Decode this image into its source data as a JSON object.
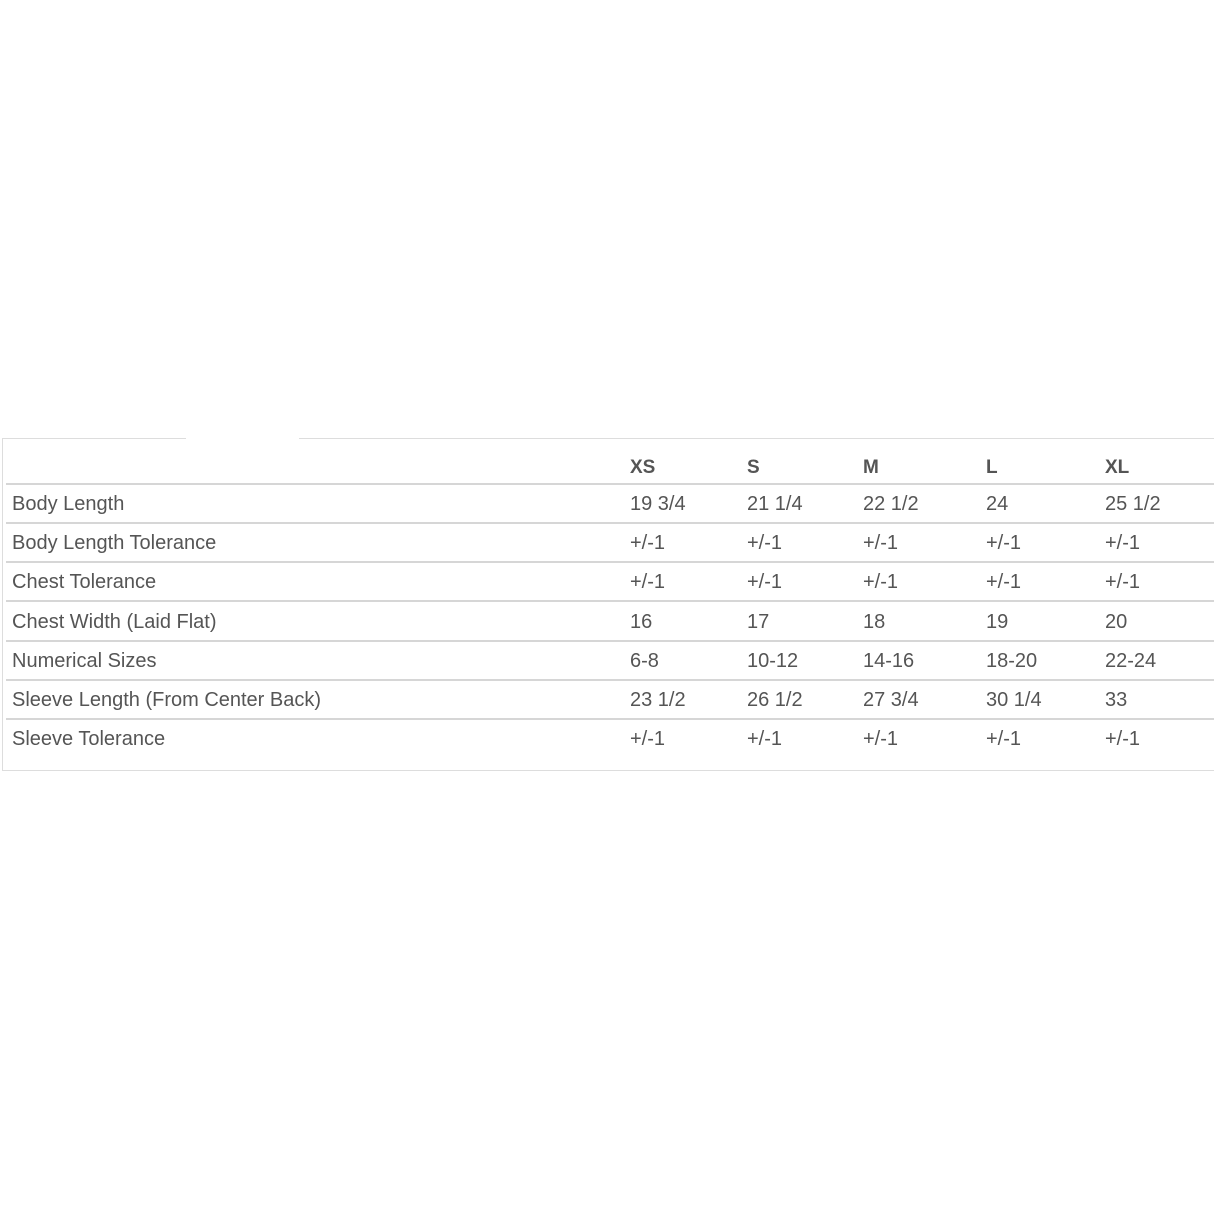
{
  "table": {
    "columns": [
      "XS",
      "S",
      "M",
      "L",
      "XL"
    ],
    "rows": [
      {
        "label": "Body Length",
        "values": [
          "19 3/4",
          "21 1/4",
          "22 1/2",
          "24",
          "25 1/2"
        ]
      },
      {
        "label": "Body Length Tolerance",
        "values": [
          "+/-1",
          "+/-1",
          "+/-1",
          "+/-1",
          "+/-1"
        ]
      },
      {
        "label": "Chest Tolerance",
        "values": [
          "+/-1",
          "+/-1",
          "+/-1",
          "+/-1",
          "+/-1"
        ]
      },
      {
        "label": "Chest Width (Laid Flat)",
        "values": [
          "16",
          "17",
          "18",
          "19",
          "20"
        ]
      },
      {
        "label": "Numerical Sizes",
        "values": [
          "6-8",
          "10-12",
          "14-16",
          "18-20",
          "22-24"
        ]
      },
      {
        "label": "Sleeve Length (From Center Back)",
        "values": [
          "23 1/2",
          "26 1/2",
          "27 3/4",
          "30 1/4",
          "33"
        ]
      },
      {
        "label": "Sleeve Tolerance",
        "values": [
          "+/-1",
          "+/-1",
          "+/-1",
          "+/-1",
          "+/-1"
        ]
      }
    ]
  }
}
